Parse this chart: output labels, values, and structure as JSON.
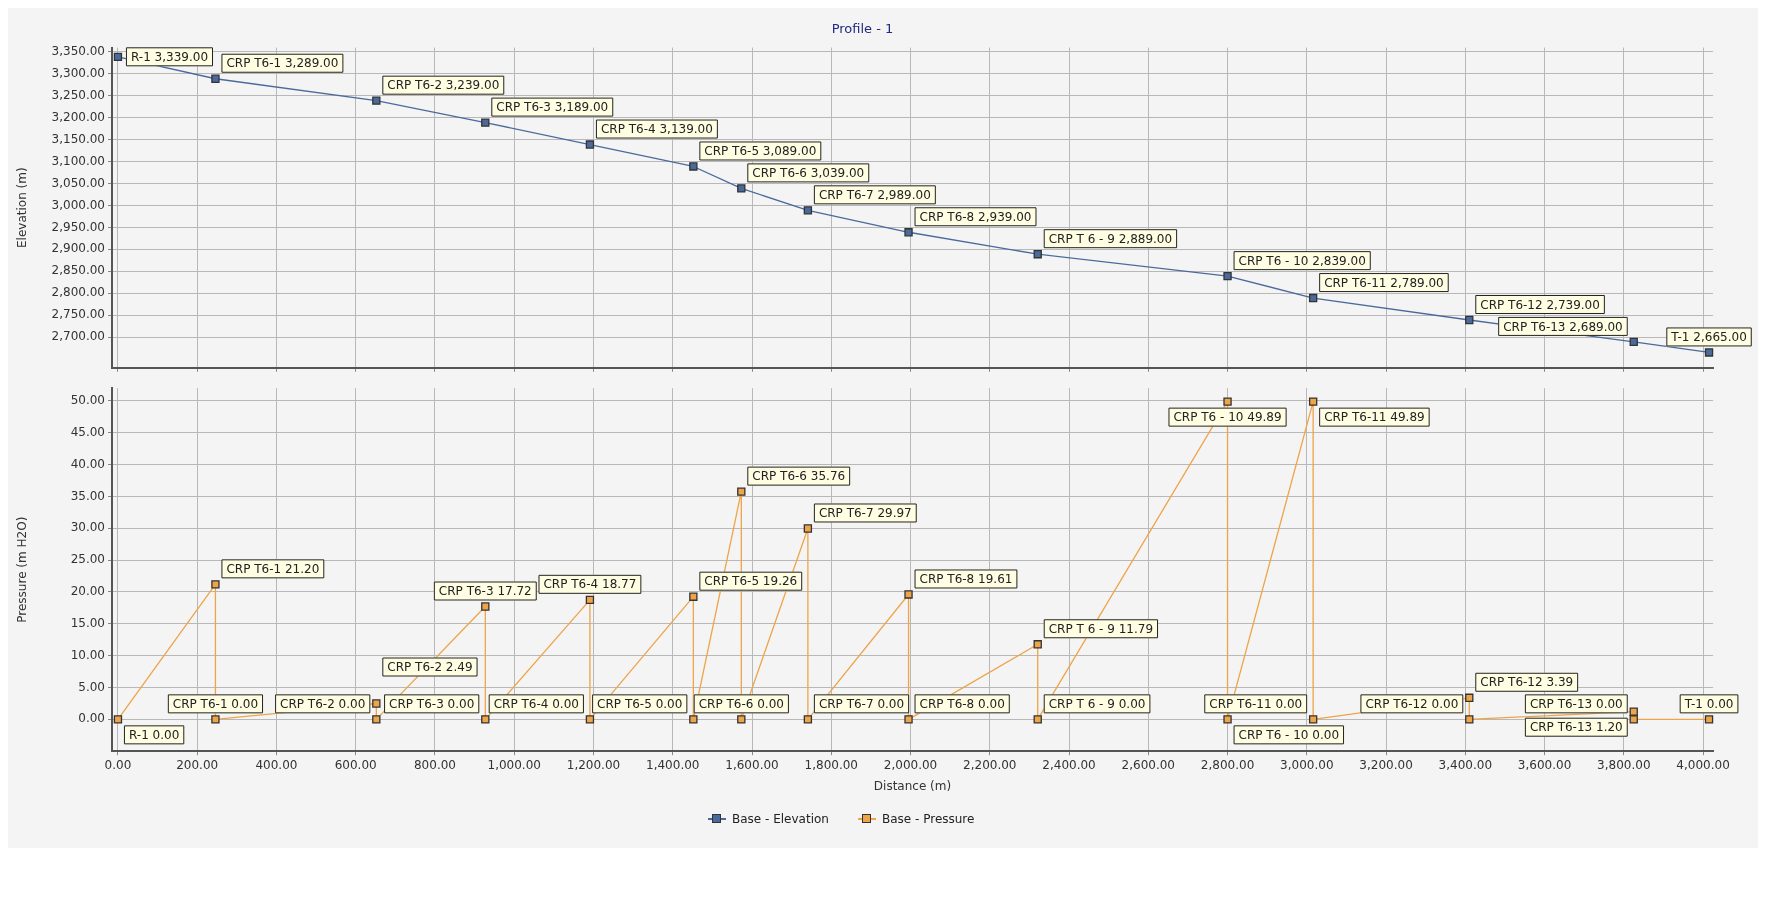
{
  "chart_data": [
    {
      "type": "line",
      "title": "Profile - 1",
      "ylabel": "Elevation (m)",
      "marker": "square",
      "grid": true,
      "legend": "bottom",
      "tick_labels": "y",
      "xlim": [
        -15,
        4025
      ],
      "xticks": [
        {
          "value": 0,
          "label": null
        },
        {
          "value": 200,
          "label": null
        },
        {
          "value": 400,
          "label": null
        },
        {
          "value": 600,
          "label": null
        },
        {
          "value": 800,
          "label": null
        },
        {
          "value": 1000,
          "label": null
        },
        {
          "value": 1200,
          "label": null
        },
        {
          "value": 1400,
          "label": null
        },
        {
          "value": 1600,
          "label": null
        },
        {
          "value": 1800,
          "label": null
        },
        {
          "value": 2000,
          "label": null
        },
        {
          "value": 2200,
          "label": null
        },
        {
          "value": 2400,
          "label": null
        },
        {
          "value": 2600,
          "label": null
        },
        {
          "value": 2800,
          "label": null
        },
        {
          "value": 3000,
          "label": null
        },
        {
          "value": 3200,
          "label": null
        },
        {
          "value": 3400,
          "label": null
        },
        {
          "value": 3600,
          "label": null
        },
        {
          "value": 3800,
          "label": null
        },
        {
          "value": 4000,
          "label": null
        }
      ],
      "ylim": [
        2630,
        3360
      ],
      "yticks": [
        {
          "value": 2700,
          "label": "2,700.00"
        },
        {
          "value": 2750,
          "label": "2,750.00"
        },
        {
          "value": 2800,
          "label": "2,800.00"
        },
        {
          "value": 2850,
          "label": "2,850.00"
        },
        {
          "value": 2900,
          "label": "2,900.00"
        },
        {
          "value": 2950,
          "label": "2,950.00"
        },
        {
          "value": 3000,
          "label": "3,000.00"
        },
        {
          "value": 3050,
          "label": "3,050.00"
        },
        {
          "value": 3100,
          "label": "3,100.00"
        },
        {
          "value": 3150,
          "label": "3,150.00"
        },
        {
          "value": 3200,
          "label": "3,200.00"
        },
        {
          "value": 3250,
          "label": "3,250.00"
        },
        {
          "value": 3300,
          "label": "3,300.00"
        },
        {
          "value": 3350,
          "label": "3,350.00"
        }
      ],
      "series": [
        {
          "name": "Base - Elevation",
          "color": "#4a6a9c",
          "x": [
            0,
            246,
            652,
            927,
            1191,
            1452,
            1573,
            1741,
            1995,
            2321,
            2800,
            3016,
            3410,
            3825,
            4015
          ],
          "values": [
            3339,
            3289,
            3239,
            3189,
            3139,
            3089,
            3039,
            2989,
            2939,
            2889,
            2839,
            2789,
            2739,
            2689,
            2665
          ],
          "value_labels": [
            "R-1 3,339.00",
            "CRP T6-1 3,289.00",
            "CRP T6-2 3,239.00",
            "CRP T6-3 3,189.00",
            "CRP T6-4 3,139.00",
            "CRP T6-5 3,089.00",
            "CRP T6-6 3,039.00",
            "CRP T6-7 2,989.00",
            "CRP T6-8 2,939.00",
            "CRP T 6 - 9 2,889.00",
            "CRP T6 - 10 2,839.00",
            "CRP T6-11 2,789.00",
            "CRP T6-12 2,739.00",
            "CRP T6-13 2,689.00",
            "T-1 2,665.00"
          ]
        }
      ]
    },
    {
      "type": "line",
      "xlabel": "Distance (m)",
      "ylabel": "Pressure (m H2O)",
      "marker": "square",
      "grid": true,
      "legend": "bottom",
      "xlim": [
        -15,
        4025
      ],
      "xticks": [
        {
          "value": 0,
          "label": "0.00"
        },
        {
          "value": 200,
          "label": "200.00"
        },
        {
          "value": 400,
          "label": "400.00"
        },
        {
          "value": 600,
          "label": "600.00"
        },
        {
          "value": 800,
          "label": "800.00"
        },
        {
          "value": 1000,
          "label": "1,000.00"
        },
        {
          "value": 1200,
          "label": "1,200.00"
        },
        {
          "value": 1400,
          "label": "1,400.00"
        },
        {
          "value": 1600,
          "label": "1,600.00"
        },
        {
          "value": 1800,
          "label": "1,800.00"
        },
        {
          "value": 2000,
          "label": "2,000.00"
        },
        {
          "value": 2200,
          "label": "2,200.00"
        },
        {
          "value": 2400,
          "label": "2,400.00"
        },
        {
          "value": 2600,
          "label": "2,600.00"
        },
        {
          "value": 2800,
          "label": "2,800.00"
        },
        {
          "value": 3000,
          "label": "3,000.00"
        },
        {
          "value": 3200,
          "label": "3,200.00"
        },
        {
          "value": 3400,
          "label": "3,400.00"
        },
        {
          "value": 3600,
          "label": "3,600.00"
        },
        {
          "value": 3800,
          "label": "3,800.00"
        },
        {
          "value": 4000,
          "label": "4,000.00"
        }
      ],
      "ylim": [
        -5,
        52
      ],
      "yticks": [
        {
          "value": 0,
          "label": "0.00"
        },
        {
          "value": 5,
          "label": "5.00"
        },
        {
          "value": 10,
          "label": "10.00"
        },
        {
          "value": 15,
          "label": "15.00"
        },
        {
          "value": 20,
          "label": "20.00"
        },
        {
          "value": 25,
          "label": "25.00"
        },
        {
          "value": 30,
          "label": "30.00"
        },
        {
          "value": 35,
          "label": "35.00"
        },
        {
          "value": 40,
          "label": "40.00"
        },
        {
          "value": 45,
          "label": "45.00"
        },
        {
          "value": 50,
          "label": "50.00"
        }
      ],
      "series": [
        {
          "name": "Base - Pressure",
          "color": "#eea448",
          "x": [
            0,
            246,
            246,
            652,
            652,
            927,
            927,
            1191,
            1191,
            1452,
            1452,
            1573,
            1573,
            1741,
            1741,
            1995,
            1995,
            2321,
            2321,
            2800,
            2800,
            3016,
            3016,
            3410,
            3410,
            3825,
            3825,
            4015
          ],
          "values": [
            0,
            21.2,
            0,
            2.49,
            0,
            17.72,
            0,
            18.77,
            0,
            19.26,
            0,
            35.76,
            0,
            29.97,
            0,
            19.61,
            0,
            11.79,
            0,
            49.89,
            0,
            49.89,
            0,
            3.39,
            0,
            1.2,
            0,
            0
          ],
          "value_labels": [
            "R-1 0.00",
            "CRP T6-1 21.20",
            "CRP T6-1 0.00",
            "CRP T6-2 2.49",
            "CRP T6-2 0.00",
            "CRP T6-3 17.72",
            "CRP T6-3 0.00",
            "CRP T6-4 18.77",
            "CRP T6-4 0.00",
            "CRP T6-5 19.26",
            "CRP T6-5 0.00",
            "CRP T6-6 35.76",
            "CRP T6-6 0.00",
            "CRP T6-7 29.97",
            "CRP T6-7 0.00",
            "CRP T6-8 19.61",
            "CRP T6-8 0.00",
            "CRP T 6 - 9 11.79",
            "CRP T 6 - 9 0.00",
            "CRP T6 - 10 49.89",
            "CRP T6 - 10 0.00",
            "CRP T6-11 49.89",
            "CRP T6-11 0.00",
            "CRP T6-12 3.39",
            "CRP T6-12 0.00",
            "CRP T6-13 1.20",
            "CRP T6-13 0.00",
            "T-1 0.00"
          ]
        }
      ]
    }
  ]
}
